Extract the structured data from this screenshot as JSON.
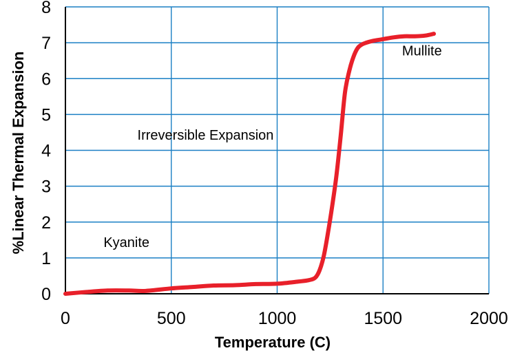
{
  "chart_data": {
    "type": "line",
    "title": "",
    "xlabel": "Temperature (C)",
    "ylabel": "%Linear Thermal Expansion",
    "xlim": [
      0,
      2000
    ],
    "ylim": [
      0,
      8
    ],
    "xticks": [
      0,
      500,
      1000,
      1500,
      2000
    ],
    "yticks": [
      0,
      1,
      2,
      3,
      4,
      5,
      6,
      7,
      8
    ],
    "grid": true,
    "line_color": "#e8202a",
    "grid_color": "#1a7fc4",
    "series": [
      {
        "x": [
          0,
          100,
          200,
          300,
          380,
          500,
          600,
          700,
          800,
          900,
          1000,
          1100,
          1150,
          1180,
          1200,
          1220,
          1240,
          1260,
          1280,
          1300,
          1320,
          1340,
          1360,
          1380,
          1400,
          1420,
          1450,
          1500,
          1550,
          1600,
          1650,
          1700,
          1740
        ],
        "y": [
          0.0,
          0.05,
          0.09,
          0.09,
          0.08,
          0.15,
          0.19,
          0.23,
          0.24,
          0.27,
          0.28,
          0.34,
          0.38,
          0.45,
          0.65,
          1.05,
          1.7,
          2.45,
          3.3,
          4.4,
          5.6,
          6.2,
          6.6,
          6.85,
          6.95,
          7.0,
          7.05,
          7.1,
          7.15,
          7.18,
          7.18,
          7.2,
          7.25
        ]
      }
    ],
    "annotations": [
      {
        "text": "Kyanite",
        "x": 180,
        "y": 1.3
      },
      {
        "text": "Irreversible Expansion",
        "x": 340,
        "y": 4.3
      },
      {
        "text": "Mullite",
        "x": 1590,
        "y": 6.65
      }
    ]
  }
}
